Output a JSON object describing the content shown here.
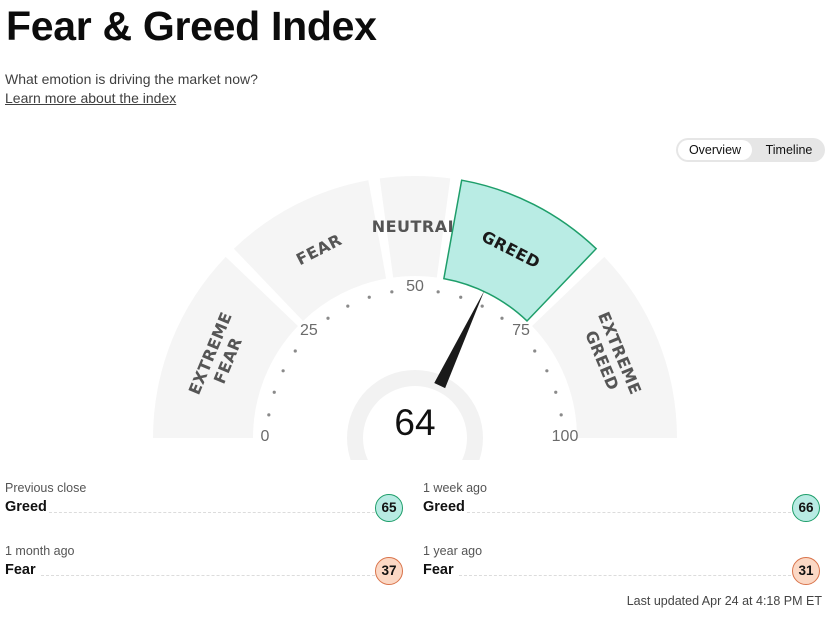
{
  "page": {
    "title": "Fear & Greed Index",
    "subtitle": "What emotion is driving the market now?",
    "learn_more": "Learn more about the index"
  },
  "view_toggle": {
    "overview": "Overview",
    "timeline": "Timeline",
    "selected": "Overview"
  },
  "gauge": {
    "value": 64,
    "value_text": "64",
    "active_segment": "GREED",
    "segments": [
      {
        "line1": "EXTREME",
        "line2": "FEAR",
        "range": [
          0,
          25
        ]
      },
      {
        "line1": "FEAR",
        "line2": "",
        "range": [
          25,
          45
        ]
      },
      {
        "line1": "NEUTRAL",
        "line2": "",
        "range": [
          45,
          55
        ]
      },
      {
        "line1": "GREED",
        "line2": "",
        "range": [
          55,
          75
        ]
      },
      {
        "line1": "EXTREME",
        "line2": "GREED",
        "range": [
          75,
          100
        ]
      }
    ],
    "scale_labels": [
      {
        "value": 0,
        "text": "0"
      },
      {
        "value": 25,
        "text": "25"
      },
      {
        "value": 50,
        "text": "50"
      },
      {
        "value": 75,
        "text": "75"
      },
      {
        "value": 100,
        "text": "100"
      }
    ],
    "colors": {
      "segment": "#f5f5f5",
      "active_fill": "#b9ece4",
      "active_stroke": "#1e9e6a",
      "needle": "#1a1a1a"
    }
  },
  "history": [
    {
      "label": "Previous close",
      "rating": "Greed",
      "value": "65",
      "tone": "greed"
    },
    {
      "label": "1 week ago",
      "rating": "Greed",
      "value": "66",
      "tone": "greed"
    },
    {
      "label": "1 month ago",
      "rating": "Fear",
      "value": "37",
      "tone": "fear"
    },
    {
      "label": "1 year ago",
      "rating": "Fear",
      "value": "31",
      "tone": "fear"
    }
  ],
  "last_updated": "Last updated Apr 24 at 4:18 PM ET"
}
